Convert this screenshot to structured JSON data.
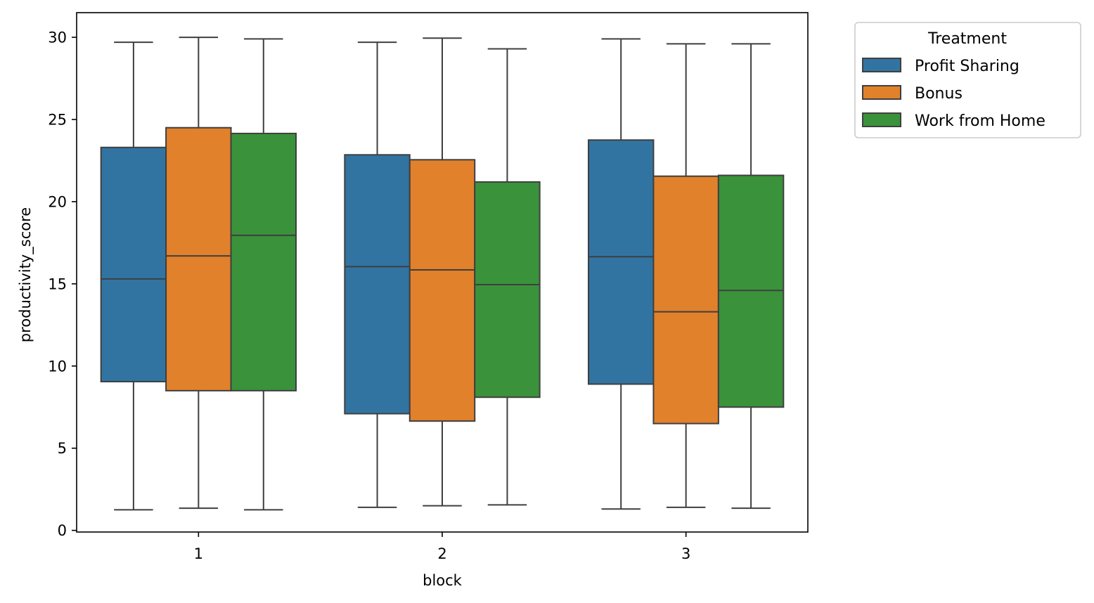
{
  "chart_data": {
    "type": "box",
    "title": "",
    "xlabel": "block",
    "ylabel": "productivity_score",
    "ylim": [
      -0.1,
      31.5
    ],
    "yticks": [
      "0",
      "5",
      "10",
      "15",
      "20",
      "25",
      "30"
    ],
    "categories": [
      "1",
      "2",
      "3"
    ],
    "grid": false,
    "legend": {
      "title": "Treatment",
      "placement": "outside-upper-right"
    },
    "series": [
      {
        "name": "Profit Sharing",
        "color": "#3274a1",
        "boxes": [
          {
            "category": "1",
            "min": 1.25,
            "q1": 9.05,
            "median": 15.3,
            "q3": 23.3,
            "max": 29.7
          },
          {
            "category": "2",
            "min": 1.4,
            "q1": 7.1,
            "median": 16.05,
            "q3": 22.85,
            "max": 29.7
          },
          {
            "category": "3",
            "min": 1.3,
            "q1": 8.9,
            "median": 16.65,
            "q3": 23.75,
            "max": 29.9
          }
        ]
      },
      {
        "name": "Bonus",
        "color": "#e1812c",
        "boxes": [
          {
            "category": "1",
            "min": 1.35,
            "q1": 8.5,
            "median": 16.7,
            "q3": 24.5,
            "max": 30.0
          },
          {
            "category": "2",
            "min": 1.5,
            "q1": 6.65,
            "median": 15.85,
            "q3": 22.55,
            "max": 29.95
          },
          {
            "category": "3",
            "min": 1.4,
            "q1": 6.5,
            "median": 13.3,
            "q3": 21.55,
            "max": 29.6
          }
        ]
      },
      {
        "name": "Work from Home",
        "color": "#3a923a",
        "boxes": [
          {
            "category": "1",
            "min": 1.25,
            "q1": 8.5,
            "median": 17.95,
            "q3": 24.15,
            "max": 29.9
          },
          {
            "category": "2",
            "min": 1.55,
            "q1": 8.1,
            "median": 14.95,
            "q3": 21.2,
            "max": 29.3
          },
          {
            "category": "3",
            "min": 1.35,
            "q1": 7.5,
            "median": 14.6,
            "q3": 21.6,
            "max": 29.6
          }
        ]
      }
    ]
  }
}
